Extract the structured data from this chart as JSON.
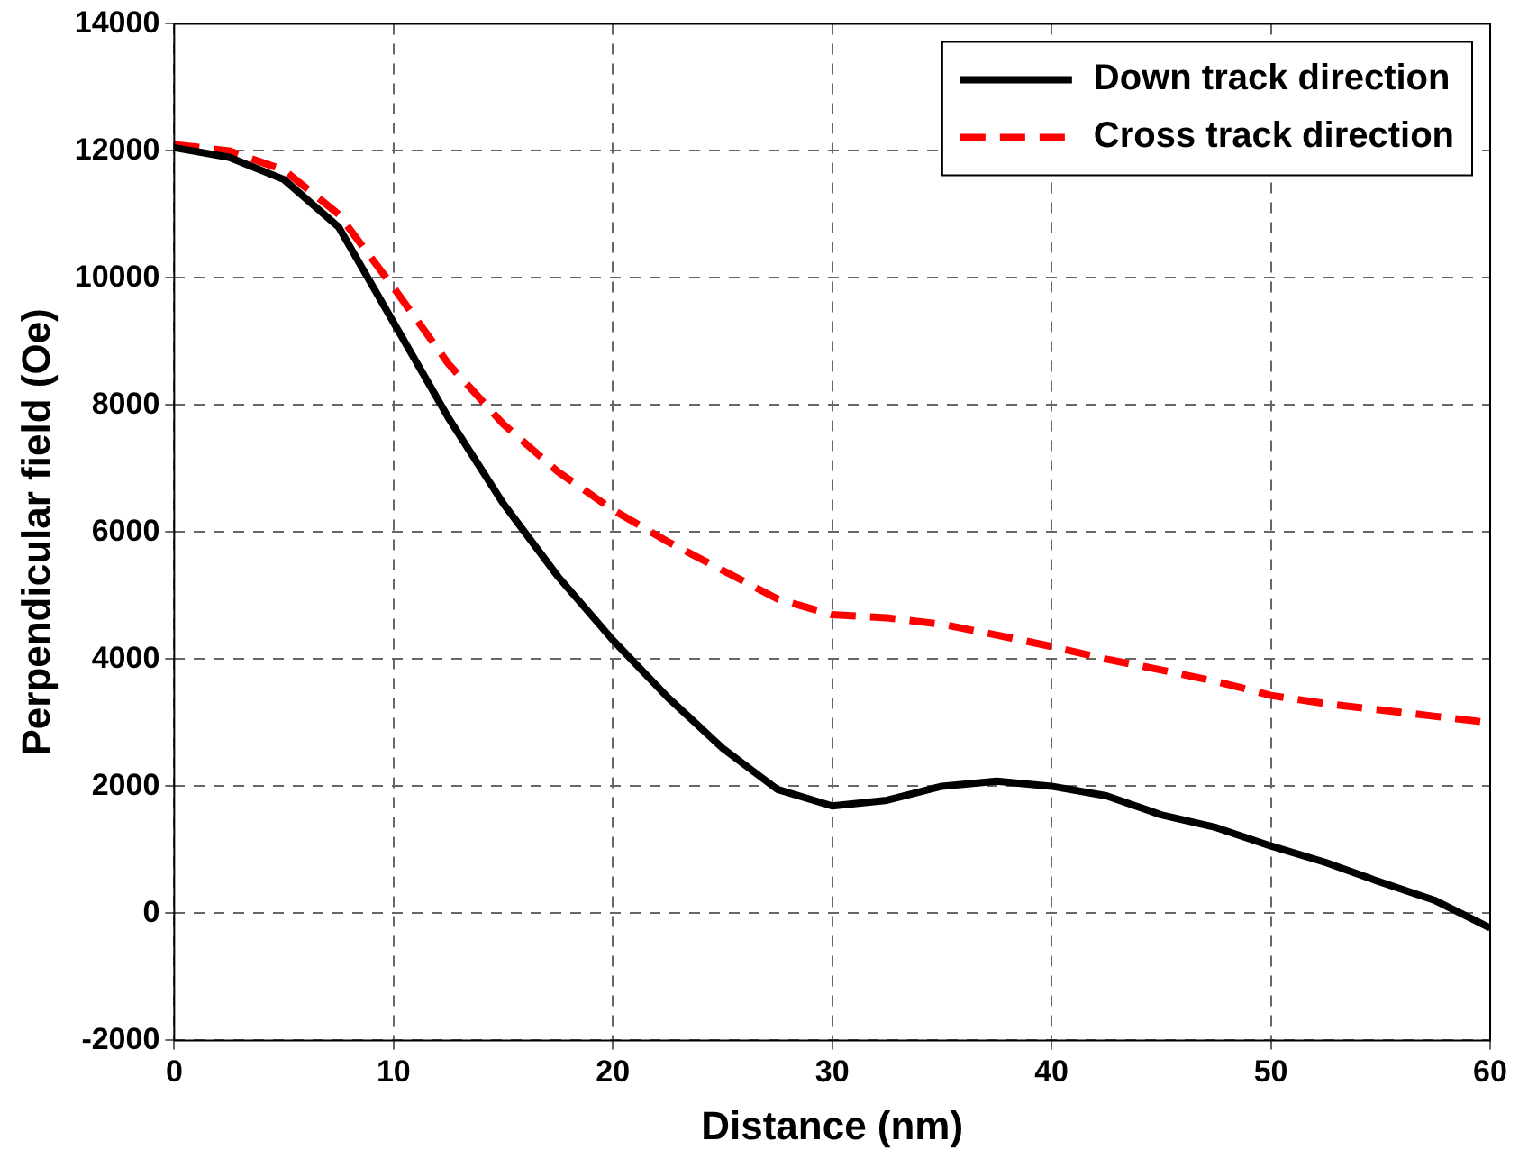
{
  "chart_data": {
    "type": "line",
    "xlabel": "Distance (nm)",
    "ylabel": "Perpendicular field (Oe)",
    "xlim": [
      0,
      60
    ],
    "xticks": [
      0,
      10,
      20,
      30,
      40,
      50,
      60
    ],
    "ylim": [
      -2000,
      14000
    ],
    "yticks": [
      -2000,
      0,
      2000,
      4000,
      6000,
      8000,
      10000,
      12000,
      14000
    ],
    "grid": true,
    "legend": "top right",
    "marker": "none",
    "series": [
      {
        "name": "Down track direction",
        "color": "#000000",
        "line_style": "solid",
        "x": [
          0,
          2.5,
          5,
          7.5,
          10,
          12.5,
          15,
          17.5,
          20,
          22.5,
          25,
          27.5,
          30,
          32.5,
          35,
          37.5,
          40,
          42.5,
          45,
          47.5,
          50,
          52.5,
          55,
          57.5,
          60
        ],
        "values": [
          12050,
          11900,
          11550,
          10800,
          9300,
          7800,
          6450,
          5300,
          4300,
          3400,
          2600,
          1950,
          1690,
          1780,
          2000,
          2080,
          2000,
          1850,
          1550,
          1350,
          1060,
          800,
          490,
          200,
          -230
        ]
      },
      {
        "name": "Cross track direction",
        "color": "#ff0000",
        "line_style": "dashed",
        "x": [
          0,
          2.5,
          5,
          7.5,
          10,
          12.5,
          15,
          17.5,
          20,
          22.5,
          25,
          27.5,
          30,
          32.5,
          35,
          37.5,
          40,
          42.5,
          45,
          47.5,
          50,
          52.5,
          55,
          57.5,
          60
        ],
        "values": [
          12100,
          12000,
          11700,
          11000,
          9850,
          8650,
          7700,
          6950,
          6350,
          5850,
          5400,
          4950,
          4700,
          4650,
          4550,
          4380,
          4200,
          4000,
          3830,
          3650,
          3430,
          3300,
          3200,
          3100,
          3000
        ]
      }
    ]
  }
}
